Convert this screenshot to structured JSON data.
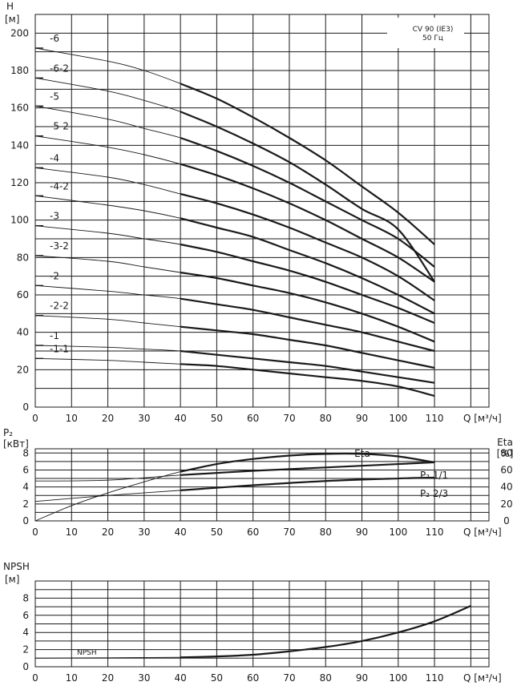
{
  "chart_data": [
    {
      "type": "line",
      "ylabel": "H",
      "ylabel_unit": "[м]",
      "xlabel": "Q [м³/ч]",
      "legend_lines": [
        "CV 90 (IE3)",
        "50 Гц"
      ],
      "xlim": [
        0,
        125
      ],
      "ylim": [
        0,
        210
      ],
      "x_ticks": [
        0,
        10,
        20,
        30,
        40,
        50,
        60,
        70,
        80,
        90,
        100,
        110
      ],
      "y_ticks": [
        0,
        20,
        40,
        60,
        80,
        100,
        120,
        140,
        160,
        180,
        200
      ],
      "grid": true,
      "series": [
        {
          "name": "-6",
          "x": [
            0,
            20,
            30,
            40,
            50,
            60,
            70,
            80,
            90,
            100,
            110
          ],
          "y": [
            192,
            185,
            180,
            173,
            165,
            155,
            144,
            132,
            118,
            104,
            87
          ]
        },
        {
          "name": "-6-2",
          "x": [
            0,
            20,
            30,
            40,
            50,
            60,
            70,
            80,
            90,
            100,
            110
          ],
          "y": [
            176,
            169,
            164,
            158,
            150,
            141,
            131,
            119,
            106,
            95,
            67
          ]
        },
        {
          "name": "-5",
          "x": [
            0,
            20,
            30,
            40,
            50,
            60,
            70,
            80,
            90,
            100,
            110
          ],
          "y": [
            161,
            154,
            149,
            144,
            137,
            129,
            120,
            110,
            100,
            90,
            75
          ]
        },
        {
          "name": "-5-2",
          "x": [
            0,
            20,
            30,
            40,
            50,
            60,
            70,
            80,
            90,
            100,
            110
          ],
          "y": [
            145,
            139,
            135,
            130,
            124,
            117,
            109,
            100,
            90,
            80,
            67
          ]
        },
        {
          "name": "-4",
          "x": [
            0,
            20,
            30,
            40,
            50,
            60,
            70,
            80,
            90,
            100,
            110
          ],
          "y": [
            128,
            123,
            119,
            114,
            109,
            103,
            96,
            88,
            80,
            70,
            57
          ]
        },
        {
          "name": "-4-2",
          "x": [
            0,
            20,
            30,
            40,
            50,
            60,
            70,
            80,
            90,
            100,
            110
          ],
          "y": [
            113,
            108,
            105,
            101,
            96,
            91,
            84,
            77,
            69,
            60,
            50
          ]
        },
        {
          "name": "-3",
          "x": [
            0,
            20,
            30,
            40,
            50,
            60,
            70,
            80,
            90,
            100,
            110
          ],
          "y": [
            97,
            93,
            90,
            87,
            83,
            78,
            73,
            67,
            60,
            53,
            45
          ]
        },
        {
          "name": "-3-2",
          "x": [
            0,
            20,
            30,
            40,
            50,
            60,
            70,
            80,
            90,
            100,
            110
          ],
          "y": [
            81,
            78,
            75,
            72,
            69,
            65,
            61,
            56,
            50,
            43,
            35
          ]
        },
        {
          "name": "-2",
          "x": [
            0,
            20,
            30,
            40,
            50,
            60,
            70,
            80,
            90,
            100,
            110
          ],
          "y": [
            65,
            62,
            60,
            58,
            55,
            52,
            48,
            44,
            40,
            35,
            30
          ]
        },
        {
          "name": "-2-2",
          "x": [
            0,
            20,
            30,
            40,
            50,
            60,
            70,
            80,
            90,
            100,
            110
          ],
          "y": [
            49,
            47,
            45,
            43,
            41,
            39,
            36,
            33,
            29,
            25,
            21
          ]
        },
        {
          "name": "-1",
          "x": [
            0,
            20,
            30,
            40,
            50,
            60,
            70,
            80,
            90,
            100,
            110
          ],
          "y": [
            33,
            32,
            31,
            30,
            28,
            26,
            24,
            22,
            19,
            16,
            13
          ]
        },
        {
          "name": "-1-1",
          "x": [
            0,
            20,
            30,
            40,
            50,
            60,
            70,
            80,
            90,
            100,
            110
          ],
          "y": [
            26,
            25,
            24,
            23,
            22,
            20,
            18,
            16,
            14,
            11,
            6
          ]
        }
      ]
    },
    {
      "type": "line",
      "ylabel": "P₂",
      "ylabel_unit": "[кВт]",
      "y2label": "Eta",
      "y2label_unit": "[%]",
      "xlabel": "Q [м³/ч]",
      "xlim": [
        0,
        125
      ],
      "ylim": [
        0,
        8
      ],
      "y2lim": [
        0,
        80
      ],
      "x_ticks": [
        0,
        10,
        20,
        30,
        40,
        50,
        60,
        70,
        80,
        90,
        100,
        110
      ],
      "y_ticks": [
        0,
        2,
        4,
        6,
        8
      ],
      "y2_ticks": [
        0,
        20,
        40,
        60,
        80
      ],
      "grid": true,
      "series": [
        {
          "name": "Eta",
          "axis": "right",
          "x": [
            0,
            10,
            20,
            30,
            40,
            50,
            60,
            70,
            80,
            90,
            100,
            110
          ],
          "y": [
            0,
            18,
            33,
            46,
            58,
            67,
            73,
            77,
            79,
            79,
            76,
            69
          ]
        },
        {
          "name": "P₂ 1/1",
          "axis": "left",
          "x": [
            0,
            20,
            40,
            60,
            80,
            100,
            110
          ],
          "y": [
            4.7,
            4.8,
            5.4,
            5.9,
            6.3,
            6.7,
            6.9
          ]
        },
        {
          "name": "P₂ 2/3",
          "axis": "left",
          "x": [
            0,
            20,
            40,
            60,
            80,
            100,
            110
          ],
          "y": [
            2.3,
            3.0,
            3.6,
            4.2,
            4.7,
            5.0,
            5.1
          ]
        }
      ]
    },
    {
      "type": "line",
      "ylabel": "NPSH",
      "ylabel_unit": "[м]",
      "xlabel": "Q [м³/ч]",
      "xlim": [
        0,
        125
      ],
      "ylim": [
        0,
        10
      ],
      "x_ticks": [
        0,
        10,
        20,
        30,
        40,
        50,
        60,
        70,
        80,
        90,
        100,
        110
      ],
      "y_ticks": [
        0,
        2,
        4,
        6,
        8
      ],
      "grid": true,
      "series": [
        {
          "name": "NPSH",
          "x": [
            0,
            20,
            40,
            50,
            60,
            70,
            80,
            90,
            100,
            110,
            120
          ],
          "y": [
            1.0,
            1.05,
            1.1,
            1.2,
            1.4,
            1.8,
            2.3,
            3.0,
            4.0,
            5.3,
            7.1
          ]
        }
      ]
    }
  ]
}
